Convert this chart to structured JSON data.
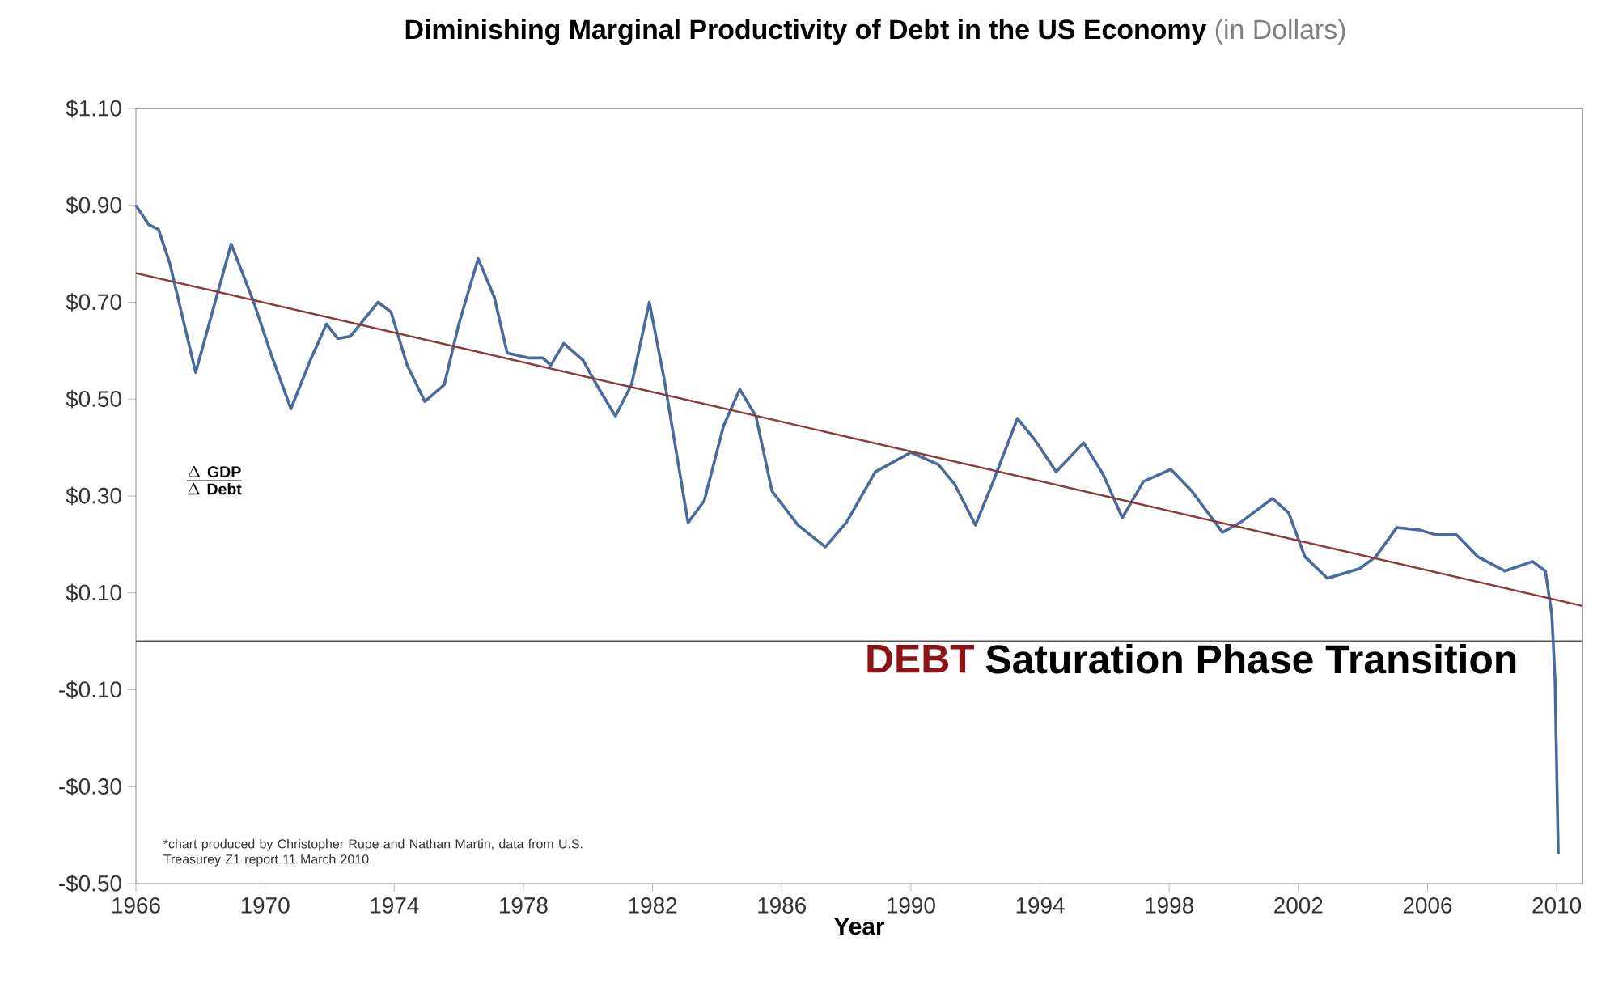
{
  "chart_data": {
    "type": "line",
    "title": "Diminishing Marginal Productivity of Debt in the US Economy",
    "subtitle": "(in Dollars)",
    "xlabel": "Year",
    "xlim": [
      1966,
      2010.8
    ],
    "xticks": [
      1966,
      1970,
      1974,
      1978,
      1982,
      1986,
      1990,
      1994,
      1998,
      2002,
      2006,
      2010
    ],
    "ylim": [
      -0.5,
      1.1
    ],
    "yticks": [
      {
        "value": 1.1,
        "label": "$1.10"
      },
      {
        "value": 0.9,
        "label": "$0.90"
      },
      {
        "value": 0.7,
        "label": "$0.70"
      },
      {
        "value": 0.5,
        "label": "$0.50"
      },
      {
        "value": 0.3,
        "label": "$0.30"
      },
      {
        "value": 0.1,
        "label": "$0.10"
      },
      {
        "value": -0.1,
        "label": "-$0.10"
      },
      {
        "value": -0.3,
        "label": "-$0.30"
      },
      {
        "value": -0.5,
        "label": "-$0.50"
      }
    ],
    "series": [
      {
        "color": "#4a6a9c",
        "x": [
          1966.0,
          1966.4,
          1966.7,
          1967.05,
          1967.85,
          1968.95,
          1969.65,
          1970.2,
          1970.8,
          1971.4,
          1971.9,
          1972.25,
          1972.65,
          1973.5,
          1973.9,
          1974.4,
          1974.95,
          1975.55,
          1976.0,
          1976.6,
          1977.1,
          1977.5,
          1978.15,
          1978.6,
          1978.85,
          1979.25,
          1979.85,
          1980.35,
          1980.85,
          1981.35,
          1981.9,
          1982.35,
          1983.1,
          1983.6,
          1984.2,
          1984.7,
          1985.2,
          1985.7,
          1986.5,
          1987.35,
          1988.0,
          1988.9,
          1990.0,
          1990.85,
          1991.35,
          1992.0,
          1992.55,
          1993.3,
          1993.85,
          1994.5,
          1995.35,
          1995.95,
          1996.55,
          1997.2,
          1998.05,
          1998.7,
          1999.65,
          2000.2,
          2001.2,
          2001.7,
          2002.2,
          2002.9,
          2003.9,
          2004.4,
          2005.05,
          2005.75,
          2006.25,
          2006.9,
          2007.55,
          2008.4,
          2009.25,
          2009.65,
          2009.85,
          2009.95,
          2010.05
        ],
        "values": [
          0.9,
          0.86,
          0.85,
          0.78,
          0.555,
          0.82,
          0.7,
          0.59,
          0.48,
          0.58,
          0.655,
          0.625,
          0.63,
          0.7,
          0.68,
          0.57,
          0.495,
          0.53,
          0.655,
          0.79,
          0.71,
          0.595,
          0.585,
          0.585,
          0.57,
          0.615,
          0.58,
          0.52,
          0.465,
          0.53,
          0.7,
          0.545,
          0.245,
          0.29,
          0.445,
          0.52,
          0.465,
          0.31,
          0.24,
          0.195,
          0.245,
          0.35,
          0.39,
          0.365,
          0.325,
          0.24,
          0.33,
          0.46,
          0.415,
          0.35,
          0.41,
          0.345,
          0.255,
          0.33,
          0.355,
          0.31,
          0.225,
          0.245,
          0.295,
          0.265,
          0.175,
          0.13,
          0.15,
          0.175,
          0.235,
          0.23,
          0.22,
          0.22,
          0.175,
          0.145,
          0.165,
          0.145,
          0.055,
          -0.08,
          -0.44
        ]
      },
      {
        "type": "line",
        "color": "#8b3a3a",
        "x": [
          1966,
          2010.8
        ],
        "values": [
          0.76,
          0.073
        ]
      }
    ],
    "ref_lines": [
      {
        "axis": "y",
        "value": 0,
        "color": "#555555"
      }
    ],
    "annotations": [
      "\\frac{\\Delta\\ \\mathbf{GDP}}{\\Delta\\ \\mathbf{Debt}}",
      "DEBT",
      "Saturation Phase Transition",
      "*chart produced by Christopher Rupe and Nathan Martin, data from U.S. Treasurey Z1 report 11 March 2010."
    ]
  }
}
